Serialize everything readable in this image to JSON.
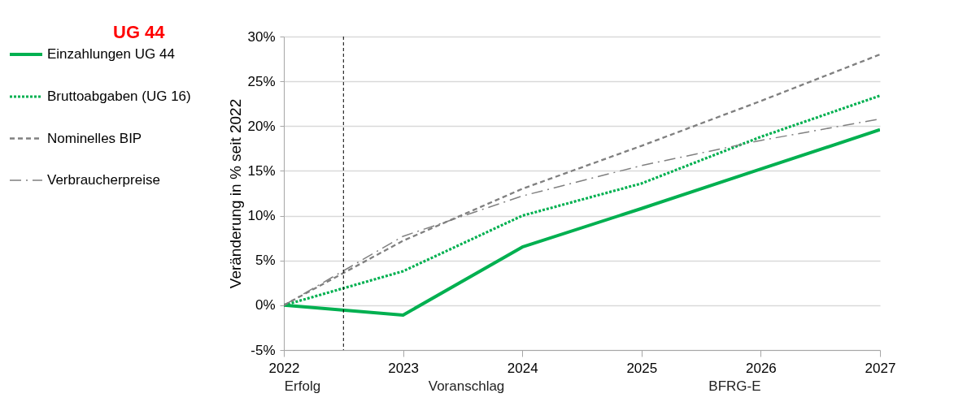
{
  "chart_data": {
    "type": "line",
    "title": "UG 44",
    "ylabel": "Veränderung in % seit 2022",
    "x": [
      2022,
      2023,
      2024,
      2025,
      2026,
      2027
    ],
    "xlim": [
      2022,
      2027
    ],
    "xticks": [
      2022,
      2023,
      2024,
      2025,
      2026,
      2027
    ],
    "ylim": [
      -5,
      30
    ],
    "yticks": [
      {
        "value": -5,
        "label": "-5%"
      },
      {
        "value": 0,
        "label": "0%"
      },
      {
        "value": 5,
        "label": "5%"
      },
      {
        "value": 10,
        "label": "10%"
      },
      {
        "value": 15,
        "label": "15%"
      },
      {
        "value": 20,
        "label": "20%"
      },
      {
        "value": 25,
        "label": "25%"
      },
      {
        "value": 30,
        "label": "30%"
      }
    ],
    "grid": "y",
    "legend": "left",
    "marker": "none",
    "series": [
      {
        "name": "Einzahlungen UG 44",
        "color": "#00b050",
        "line_style": "solid",
        "values": [
          0,
          -1.1,
          6.5,
          10.8,
          15.2,
          19.6
        ]
      },
      {
        "name": "Bruttoabgaben (UG 16)",
        "color": "#00b050",
        "line_style": "dotted",
        "values": [
          0,
          3.8,
          10.0,
          13.6,
          18.8,
          23.4
        ]
      },
      {
        "name": "Nominelles BIP",
        "color": "#808080",
        "line_style": "dashed",
        "values": [
          0,
          7.2,
          13.0,
          17.8,
          22.8,
          28.0
        ]
      },
      {
        "name": "Verbraucherpreise",
        "color": "#808080",
        "line_style": "dashdot",
        "values": [
          0,
          7.7,
          12.2,
          15.6,
          18.4,
          20.8
        ]
      }
    ],
    "ref_lines": [
      {
        "axis": "x",
        "value": 2022.5,
        "color": "#000000",
        "line_style": "dashed"
      }
    ],
    "annotations": [
      "Erfolg",
      "Voranschlag",
      "BFRG-E"
    ]
  }
}
